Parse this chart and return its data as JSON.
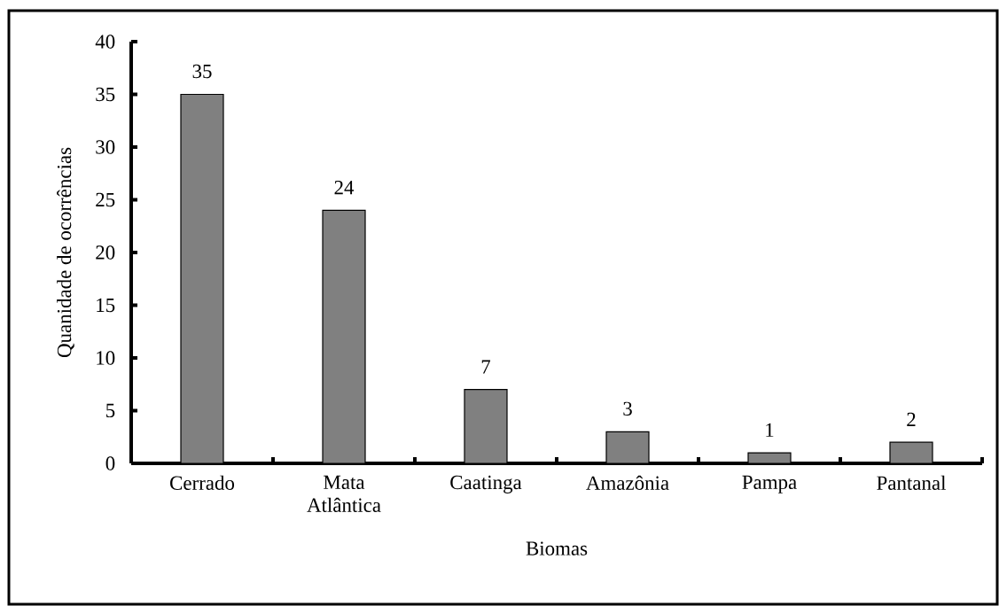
{
  "chart_data": {
    "type": "bar",
    "xlabel": "Biomas",
    "ylabel": "Quanidade de ocorrências",
    "categories": [
      "Cerrado",
      "Mata Atlântica",
      "Caatinga",
      "Amazônia",
      "Pampa",
      "Pantanal"
    ],
    "values": [
      35,
      24,
      7,
      3,
      1,
      2
    ],
    "color": "#808080",
    "ylim": [
      0,
      40
    ],
    "yticks": [
      0,
      5,
      10,
      15,
      20,
      25,
      30,
      35,
      40
    ],
    "data_labels": true
  }
}
